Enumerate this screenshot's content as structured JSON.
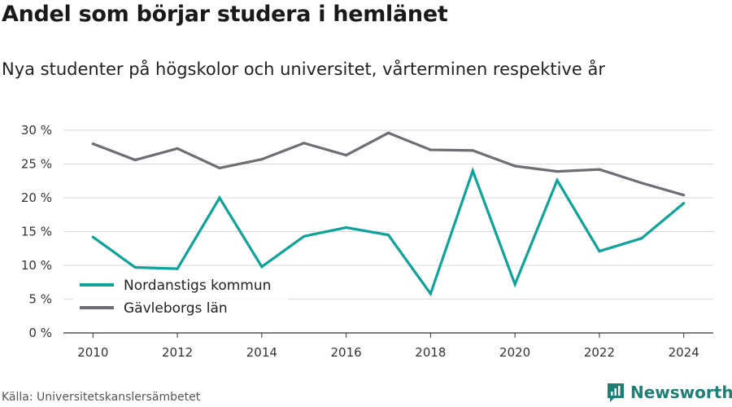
{
  "header": {
    "title": "Andel som börjar studera i hemlänet",
    "subtitle": "Nya studenter på högskolor och universitet, vårterminen respektive år"
  },
  "footer": {
    "source": "Källa: Universitetskanslersämbetet",
    "brand": "Newsworthy",
    "brand_color": "#1e7f76"
  },
  "chart_data": {
    "type": "line",
    "title": "Andel som börjar studera i hemlänet",
    "subtitle": "Nya studenter på högskolor och universitet, vårterminen respektive år",
    "x": [
      2010,
      2011,
      2012,
      2013,
      2014,
      2015,
      2016,
      2017,
      2018,
      2019,
      2020,
      2021,
      2022,
      2023,
      2024
    ],
    "xticks": [
      "2010",
      "2012",
      "2014",
      "2016",
      "2018",
      "2020",
      "2022",
      "2024"
    ],
    "yticks": [
      "0 %",
      "5 %",
      "10 %",
      "15 %",
      "20 %",
      "25 %",
      "30 %"
    ],
    "ylim": [
      0,
      30
    ],
    "grid": true,
    "legend_position": "bottom-left",
    "series": [
      {
        "name": "Nordanstigs kommun",
        "color": "#0ea39a",
        "values": [
          14.2,
          9.7,
          9.5,
          20.0,
          9.8,
          14.3,
          15.6,
          14.5,
          5.8,
          24.0,
          7.2,
          22.6,
          12.1,
          14.0,
          19.2
        ]
      },
      {
        "name": "Gävleborgs län",
        "color": "#6e6d73",
        "values": [
          28.0,
          25.6,
          27.3,
          24.4,
          25.7,
          28.1,
          26.3,
          29.6,
          27.1,
          27.0,
          24.7,
          23.9,
          24.2,
          22.2,
          20.4
        ]
      }
    ]
  }
}
